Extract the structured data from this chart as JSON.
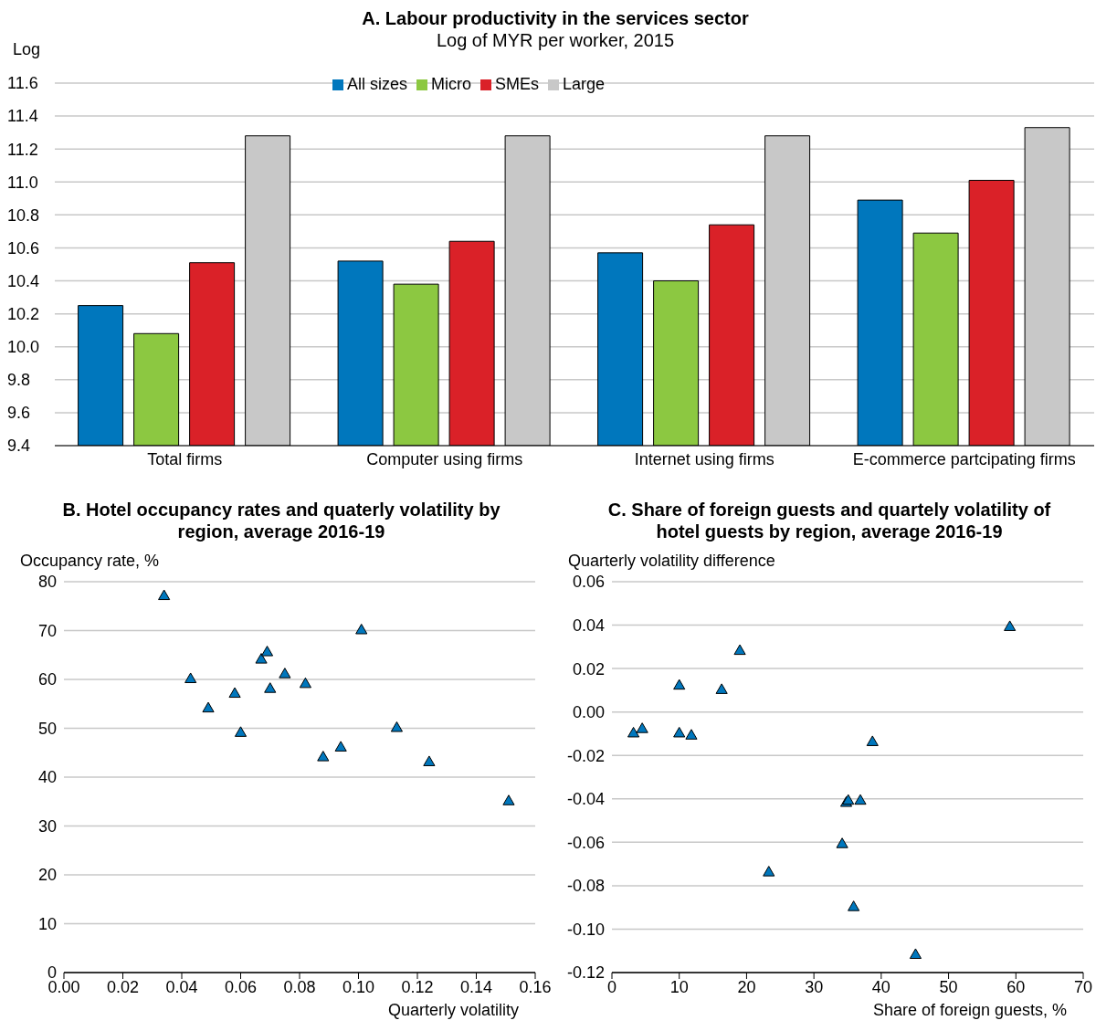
{
  "chart_data": [
    {
      "type": "bar",
      "title": "A. Labour productivity in the services sector",
      "subtitle": "Log of MYR per worker, 2015",
      "ylabel": "Log",
      "categories": [
        "Total firms",
        "Computer using firms",
        "Internet using firms",
        "E-commerce partcipating firms"
      ],
      "series": [
        {
          "name": "All sizes",
          "color": "#0077bd",
          "values": [
            10.25,
            10.52,
            10.57,
            10.89
          ]
        },
        {
          "name": "Micro",
          "color": "#8cc841",
          "values": [
            10.08,
            10.38,
            10.4,
            10.69
          ]
        },
        {
          "name": "SMEs",
          "color": "#da2128",
          "values": [
            10.51,
            10.64,
            10.74,
            11.01
          ]
        },
        {
          "name": "Large",
          "color": "#c8c8c8",
          "values": [
            11.28,
            11.28,
            11.28,
            11.33
          ]
        }
      ],
      "ylim": [
        9.4,
        11.6
      ],
      "yticks": [
        9.4,
        9.6,
        9.8,
        {
          "value": 10,
          "label": "10.0"
        },
        10.2,
        10.4,
        10.6,
        10.8,
        {
          "value": 11,
          "label": "11.0"
        },
        11.2,
        11.4,
        11.6
      ],
      "grid": "y",
      "legend": "top"
    },
    {
      "type": "scatter",
      "title": "B. Hotel occupancy rates and quaterly volatility by region, average 2016-19",
      "xlabel": "Quarterly volatility",
      "ylabel": "Occupancy rate, %",
      "x": [
        0.034,
        0.043,
        0.049,
        0.058,
        0.06,
        0.067,
        0.069,
        0.07,
        0.075,
        0.082,
        0.088,
        0.094,
        0.101,
        0.113,
        0.124,
        0.151
      ],
      "values": [
        77,
        60,
        54,
        57,
        49,
        64,
        65.5,
        58,
        61,
        59,
        44,
        46,
        70,
        50,
        43,
        35
      ],
      "color": "#0077bd",
      "marker": "triangle",
      "xlim": [
        0,
        0.16
      ],
      "xticks": [
        {
          "value": 0,
          "label": "0.00"
        },
        0.02,
        0.04,
        0.06,
        0.08,
        {
          "value": 0.1,
          "label": "0.10"
        },
        0.12,
        0.14,
        0.16
      ],
      "ylim": [
        0,
        80
      ],
      "yticks": [
        0,
        10,
        20,
        30,
        40,
        50,
        60,
        70,
        80
      ],
      "grid": "y"
    },
    {
      "type": "scatter",
      "title": "C. Share of foreign guests and quartely volatility of hotel guests by region, average 2016-19",
      "xlabel": "Share of foreign guests, %",
      "ylabel": "Quarterly volatility difference",
      "x": [
        3.2,
        4.5,
        10,
        10,
        11.8,
        16.3,
        19,
        23.3,
        34.2,
        34.8,
        35.1,
        36.9,
        35.9,
        38.7,
        45.1,
        59.1
      ],
      "values": [
        -0.01,
        -0.008,
        0.012,
        -0.01,
        -0.011,
        0.01,
        0.028,
        -0.074,
        -0.061,
        -0.042,
        -0.041,
        -0.041,
        -0.09,
        -0.014,
        -0.112,
        0.039
      ],
      "color": "#0077bd",
      "marker": "triangle",
      "xlim": [
        0,
        70
      ],
      "xticks": [
        0,
        10,
        20,
        30,
        40,
        50,
        60,
        70
      ],
      "ylim": [
        -0.12,
        0.06
      ],
      "yticks": [
        {
          "value": -0.12,
          "label": "-0.12"
        },
        {
          "value": -0.1,
          "label": "-0.10"
        },
        -0.08,
        -0.06,
        -0.04,
        -0.02,
        {
          "value": 0,
          "label": "0.00"
        },
        0.02,
        0.04,
        0.06
      ],
      "grid": "y"
    }
  ]
}
